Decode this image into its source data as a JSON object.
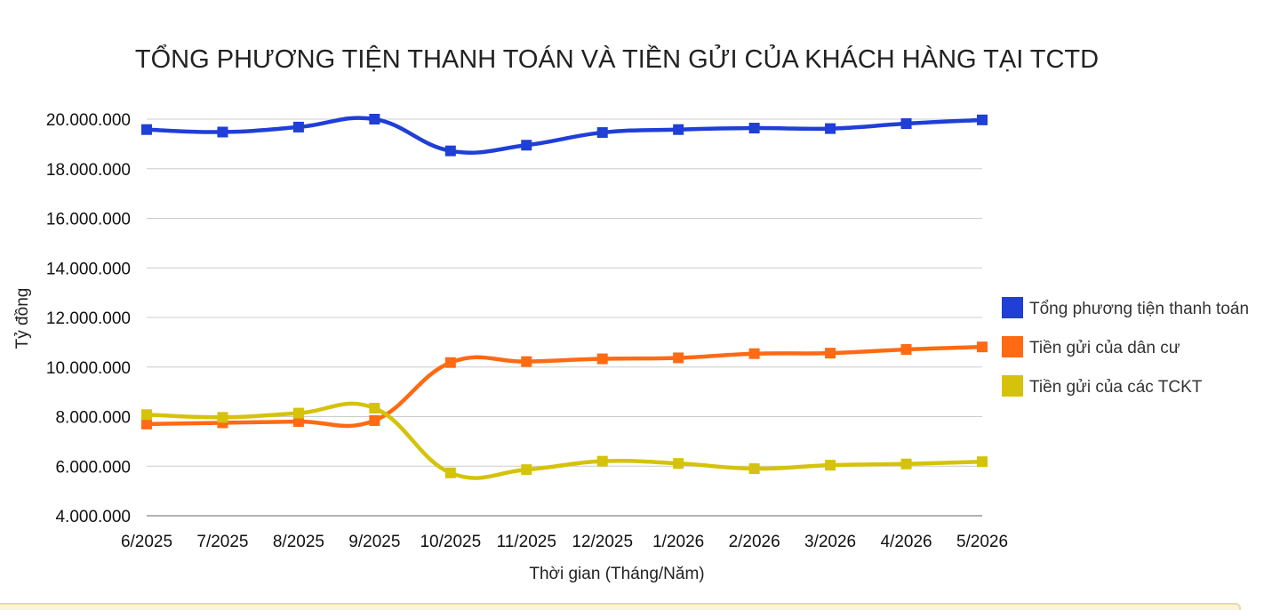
{
  "chart_data": {
    "type": "line",
    "title": "TỔNG PHƯƠNG TIỆN THANH TOÁN VÀ TIỀN GỬI CỦA KHÁCH HÀNG TẠI TCTD",
    "xlabel": "Thời gian (Tháng/Năm)",
    "ylabel": "Tỷ đồng",
    "categories": [
      "6/2025",
      "7/2025",
      "8/2025",
      "9/2025",
      "10/2025",
      "11/2025",
      "12/2025",
      "1/2026",
      "2/2026",
      "3/2026",
      "4/2026",
      "5/2026"
    ],
    "ylim": [
      4000000,
      20000000
    ],
    "yticks": [
      4000000,
      6000000,
      8000000,
      10000000,
      12000000,
      14000000,
      16000000,
      18000000,
      20000000
    ],
    "ytick_labels": [
      "4.000.000",
      "6.000.000",
      "8.000.000",
      "10.000.000",
      "12.000.000",
      "14.000.000",
      "16.000.000",
      "18.000.000",
      "20.000.000"
    ],
    "grid": true,
    "legend_position": "right",
    "series": [
      {
        "name": "Tổng phương tiện thanh toán",
        "color": "#1f3fd6",
        "values": [
          19580000,
          19480000,
          19680000,
          20000000,
          18720000,
          18950000,
          19460000,
          19580000,
          19640000,
          19620000,
          19820000,
          19970000
        ]
      },
      {
        "name": "Tiền gửi của dân cư",
        "color": "#ff6a13",
        "values": [
          7700000,
          7750000,
          7800000,
          7840000,
          10180000,
          10220000,
          10330000,
          10370000,
          10540000,
          10560000,
          10710000,
          10810000
        ]
      },
      {
        "name": "Tiền gửi của các TCKT",
        "color": "#d4c30a",
        "values": [
          8080000,
          7970000,
          8140000,
          8340000,
          5730000,
          5860000,
          6200000,
          6110000,
          5900000,
          6040000,
          6090000,
          6180000
        ]
      }
    ]
  }
}
